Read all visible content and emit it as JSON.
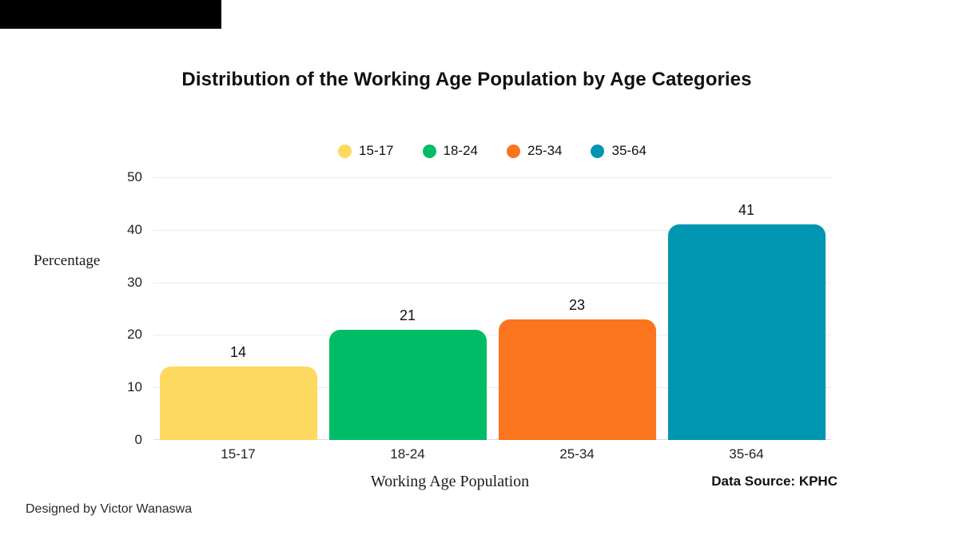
{
  "chart_data": {
    "type": "bar",
    "title": "Distribution of the Working Age Population by Age Categories",
    "categories": [
      "15-17",
      "18-24",
      "25-34",
      "35-64"
    ],
    "values": [
      14,
      21,
      23,
      41
    ],
    "bar_colors": [
      "#FDD95F",
      "#00BC66",
      "#FB741E",
      "#0095B0"
    ],
    "legend": [
      {
        "label": "15-17",
        "color": "#FDD95F"
      },
      {
        "label": "18-24",
        "color": "#00BC66"
      },
      {
        "label": "25-34",
        "color": "#FB741E"
      },
      {
        "label": "35-64",
        "color": "#0095B0"
      }
    ],
    "legend_position": "top-center",
    "xlabel": "Working Age Population",
    "ylabel": "Percentage",
    "ylim": [
      0,
      50
    ],
    "yticks": [
      0,
      10,
      20,
      30,
      40,
      50
    ],
    "grid": true
  },
  "footer": {
    "data_source": "Data Source: KPHC",
    "credit": "Designed by Victor Wanaswa"
  }
}
